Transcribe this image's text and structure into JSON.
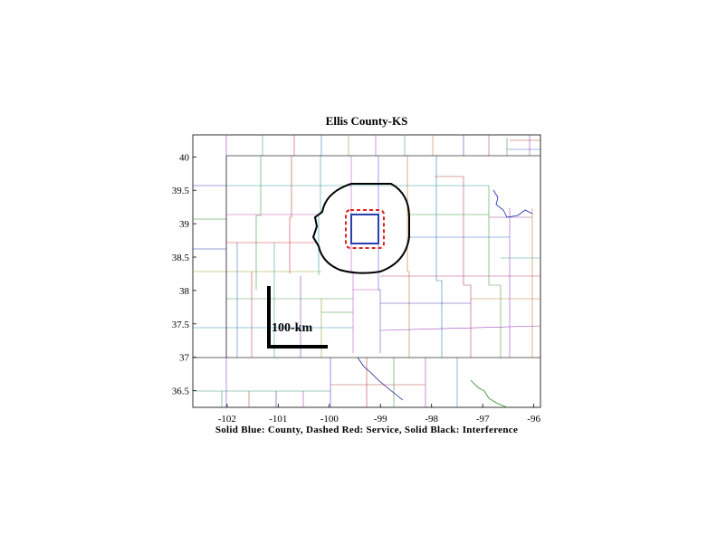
{
  "title": "Ellis County-KS",
  "caption": "Solid Blue: County, Dashed Red: Service, Solid Black: Interference",
  "scale_bar": {
    "label": "100-km"
  },
  "axes": {
    "x_ticks": [
      {
        "value": -102,
        "label": "-102"
      },
      {
        "value": -101,
        "label": "-101"
      },
      {
        "value": -100,
        "label": "-100"
      },
      {
        "value": -99,
        "label": "-99"
      },
      {
        "value": -98,
        "label": "-98"
      },
      {
        "value": -97,
        "label": "-97"
      },
      {
        "value": -96,
        "label": "-96"
      }
    ],
    "y_ticks": [
      {
        "value": 40,
        "label": "40"
      },
      {
        "value": 39.5,
        "label": "39.5"
      },
      {
        "value": 39,
        "label": "39"
      },
      {
        "value": 38.5,
        "label": "38.5"
      },
      {
        "value": 38,
        "label": "38"
      },
      {
        "value": 37.5,
        "label": "37.5"
      },
      {
        "value": 37,
        "label": "37"
      },
      {
        "value": 36.5,
        "label": "36.5"
      }
    ],
    "xlim": [
      -102.67,
      -95.87
    ],
    "ylim": [
      36.25,
      40.33
    ]
  },
  "colors": {
    "county": "#2b3fb0",
    "service": "#e02020",
    "interference": "#000000",
    "state_border": "#222222"
  }
}
